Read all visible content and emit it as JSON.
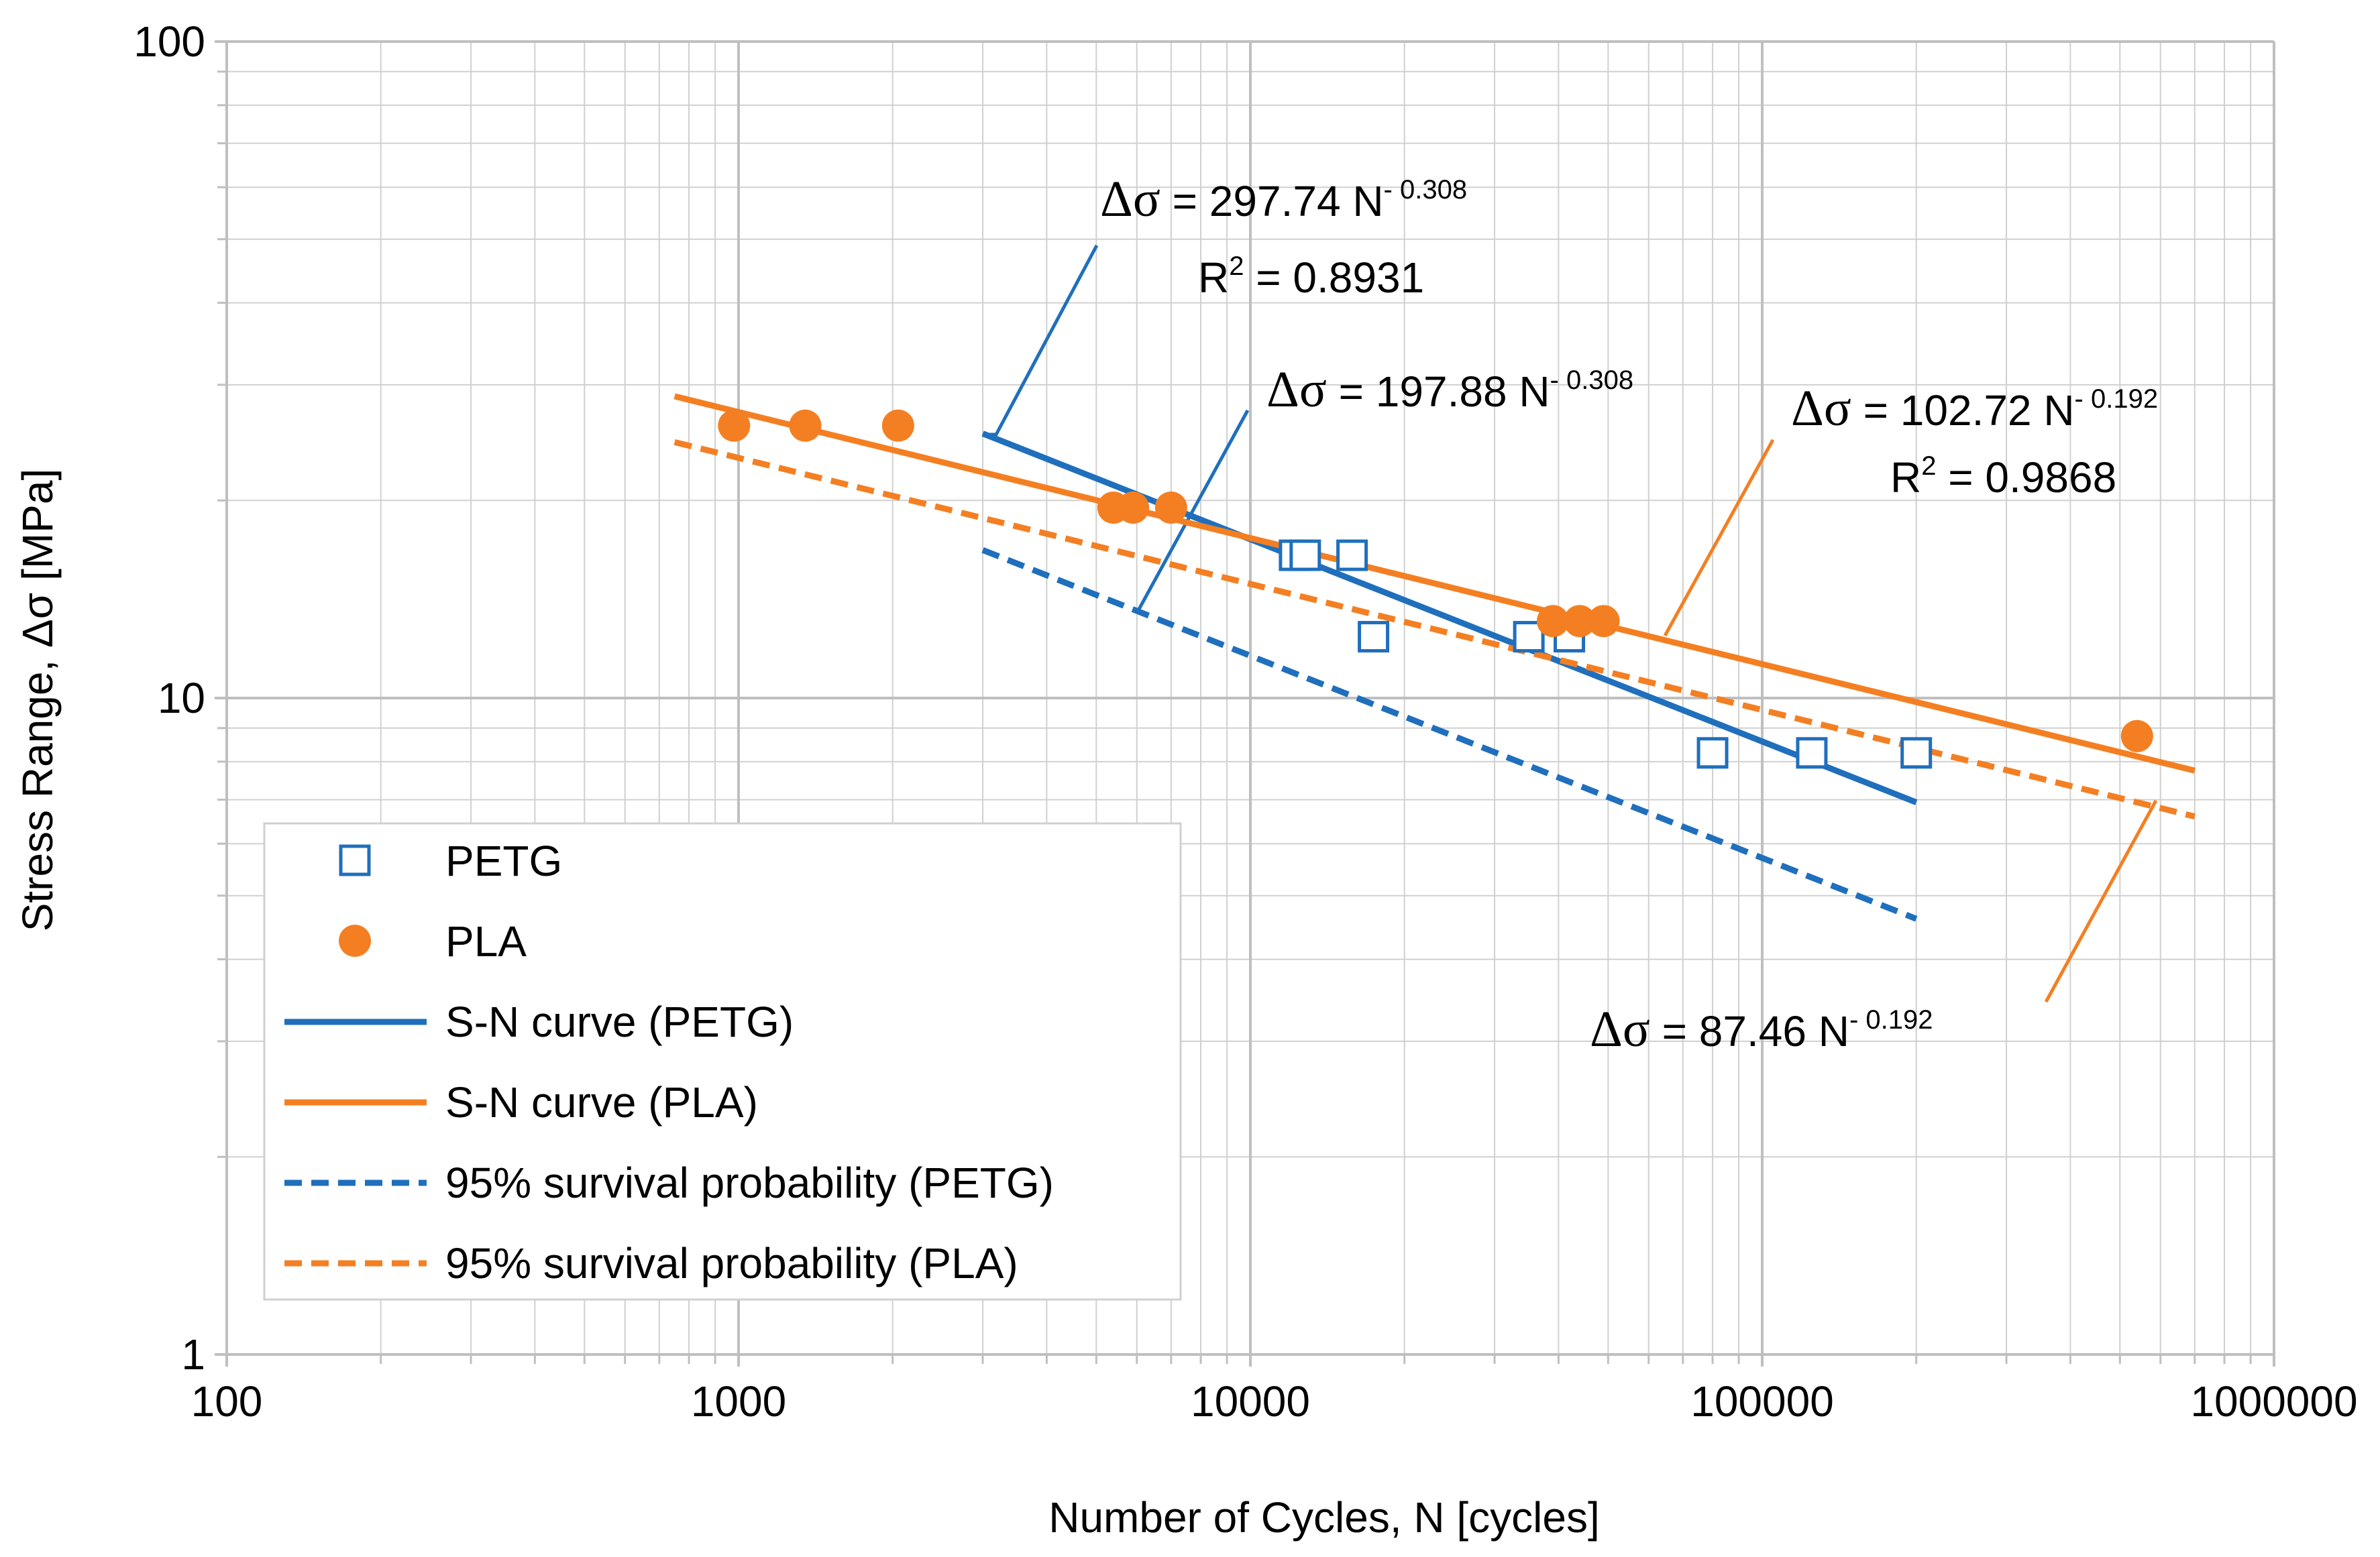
{
  "chart_data": {
    "type": "scatter",
    "scale": "log-log",
    "xlabel": "Number of Cycles, N [cycles]",
    "ylabel": "Stress Range, Δσ [MPa]",
    "xlim": [
      100,
      1000000
    ],
    "ylim": [
      1,
      100
    ],
    "x_ticks": [
      "100",
      "1000",
      "10000",
      "100000",
      "1000000"
    ],
    "y_ticks": [
      "1",
      "10",
      "100"
    ],
    "grid": true,
    "colors": {
      "petg": "#1f6fbd",
      "pla": "#f47f22",
      "grid": "#d0d0d0",
      "axis": "#bfbfbf"
    },
    "series": [
      {
        "name": "PETG",
        "kind": "marker-hollow-square",
        "color": "#1f6fbd",
        "x": [
          12200,
          12800,
          15800,
          17400,
          35000,
          42000,
          80000,
          125000,
          200000
        ],
        "y": [
          16.5,
          16.5,
          16.5,
          12.4,
          12.4,
          12.4,
          8.25,
          8.25,
          8.25
        ]
      },
      {
        "name": "PLA",
        "kind": "marker-filled-circle",
        "color": "#f47f22",
        "x": [
          980,
          1350,
          2050,
          5400,
          5900,
          7000,
          39000,
          44000,
          49000,
          540000
        ],
        "y": [
          26,
          26,
          26,
          19.5,
          19.5,
          19.5,
          13.1,
          13.1,
          13.1,
          8.75
        ]
      },
      {
        "name": "S-N curve (PETG)",
        "kind": "line-solid",
        "color": "#1f6fbd",
        "coef": 297.74,
        "exp": -0.308,
        "x_range": [
          3000,
          200000
        ]
      },
      {
        "name": "S-N curve (PLA)",
        "kind": "line-solid",
        "color": "#f47f22",
        "coef": 102.72,
        "exp": -0.192,
        "x_range": [
          750,
          700000
        ]
      },
      {
        "name": "95% survival probability (PETG)",
        "kind": "line-dashed",
        "color": "#1f6fbd",
        "coef": 197.88,
        "exp": -0.308,
        "x_range": [
          3000,
          200000
        ]
      },
      {
        "name": "95% survival probability (PLA)",
        "kind": "line-dashed",
        "color": "#f47f22",
        "coef": 87.46,
        "exp": -0.192,
        "x_range": [
          750,
          700000
        ]
      }
    ],
    "annotations": [
      {
        "id": "petg_mean",
        "symbol": "Δσ",
        "text": " = 297.74 N",
        "exp": "- 0.308",
        "r2_label": "R",
        "r2_sup": "2",
        "r2_value": " = 0.8931"
      },
      {
        "id": "petg_95",
        "symbol": "Δσ",
        "text": " = 197.88 N",
        "exp": "- 0.308"
      },
      {
        "id": "pla_mean",
        "symbol": "Δσ",
        "text": " = 102.72 N",
        "exp": "- 0.192",
        "r2_label": "R",
        "r2_sup": "2",
        "r2_value": " = 0.9868"
      },
      {
        "id": "pla_95",
        "symbol": "Δσ",
        "text": " = 87.46 N",
        "exp": "- 0.192"
      }
    ],
    "legend": {
      "placement": "bottom-left",
      "entries": [
        "PETG",
        "PLA",
        "S-N curve (PETG)",
        "S-N curve (PLA)",
        "95% survival probability (PETG)",
        "95% survival probability (PLA)"
      ]
    }
  }
}
